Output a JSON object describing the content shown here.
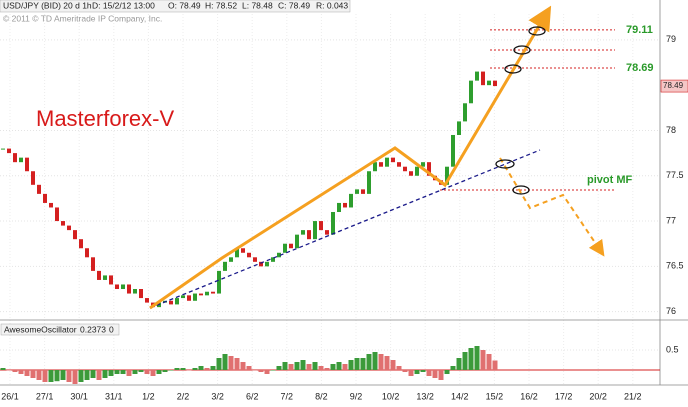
{
  "header": {
    "symbol": "USD/JPY (BID) 20 d 1h",
    "date": "D: 15/2/12 13:00",
    "open": "O: 78.49",
    "high": "H: 78.52",
    "low": "L: 78.48",
    "close": "C: 78.49",
    "range": "R: 0.043",
    "copyright": "© 2011 © TD Ameritrade IP Company, Inc."
  },
  "chart_data": [
    {
      "type": "candlestick",
      "title": "Masterforex-V",
      "values": [
        77.8,
        77.75,
        77.65,
        77.7,
        77.55,
        77.4,
        77.3,
        77.2,
        77.15,
        77.0,
        76.95,
        76.9,
        76.8,
        76.7,
        76.6,
        76.45,
        76.35,
        76.4,
        76.3,
        76.25,
        76.3,
        76.2,
        76.25,
        76.15,
        76.1,
        76.05,
        76.1,
        76.12,
        76.08,
        76.15,
        76.18,
        76.12,
        76.2,
        76.18,
        76.22,
        76.2,
        76.45,
        76.55,
        76.6,
        76.7,
        76.65,
        76.6,
        76.55,
        76.5,
        76.55,
        76.6,
        76.65,
        76.75,
        76.7,
        76.85,
        76.9,
        76.8,
        77.0,
        76.9,
        76.85,
        77.1,
        77.2,
        77.15,
        77.3,
        77.35,
        77.3,
        77.55,
        77.65,
        77.6,
        77.7,
        77.65,
        77.6,
        77.55,
        77.5,
        77.6,
        77.65,
        77.5,
        77.45,
        77.4,
        77.6,
        77.95,
        78.1,
        78.3,
        78.55,
        78.65,
        78.5,
        78.55,
        78.49
      ],
      "up_color": "#2e9e2e",
      "down_color": "#d42020",
      "ylim": [
        75.93,
        79.44
      ],
      "yticks": [
        76,
        76.5,
        77,
        77.5,
        78,
        79
      ],
      "levels": [
        79.11,
        78.69
      ],
      "pivot_label": "pivot MF",
      "x_labels": [
        "26/1",
        "27/1",
        "30/1",
        "31/1",
        "1/2",
        "2/2",
        "3/2",
        "6/2",
        "7/2",
        "8/2",
        "9/2",
        "10/2",
        "13/2",
        "14/2",
        "15/2",
        "16/2",
        "17/2",
        "20/2",
        "21/2"
      ]
    },
    {
      "type": "oscillator",
      "name": "AwesomeOscillator",
      "param": "0",
      "values": [
        0.05,
        0.0,
        -0.05,
        -0.1,
        -0.15,
        -0.2,
        -0.25,
        -0.3,
        -0.3,
        -0.28,
        -0.25,
        -0.3,
        -0.35,
        -0.3,
        -0.25,
        -0.2,
        -0.25,
        -0.2,
        -0.15,
        -0.1,
        -0.1,
        -0.15,
        -0.1,
        -0.05,
        -0.1,
        -0.15,
        -0.1,
        -0.05,
        0.0,
        0.05,
        0.05,
        0.0,
        0.05,
        0.1,
        0.05,
        0.1,
        0.3,
        0.4,
        0.35,
        0.3,
        0.2,
        0.1,
        0.0,
        -0.05,
        -0.1,
        0.0,
        0.1,
        0.2,
        0.15,
        0.2,
        0.25,
        0.15,
        0.2,
        0.1,
        0.05,
        0.15,
        0.2,
        0.15,
        0.25,
        0.3,
        0.3,
        0.4,
        0.45,
        0.4,
        0.35,
        0.25,
        0.1,
        -0.05,
        -0.15,
        -0.1,
        -0.05,
        -0.15,
        -0.2,
        -0.25,
        -0.1,
        0.1,
        0.3,
        0.45,
        0.55,
        0.6,
        0.5,
        0.4,
        0.2373
      ],
      "up_color": "#3a9a3a",
      "down_color": "#e07070",
      "ylim": [
        -0.375,
        1.2
      ],
      "yticks": [
        0.5
      ]
    }
  ]
}
